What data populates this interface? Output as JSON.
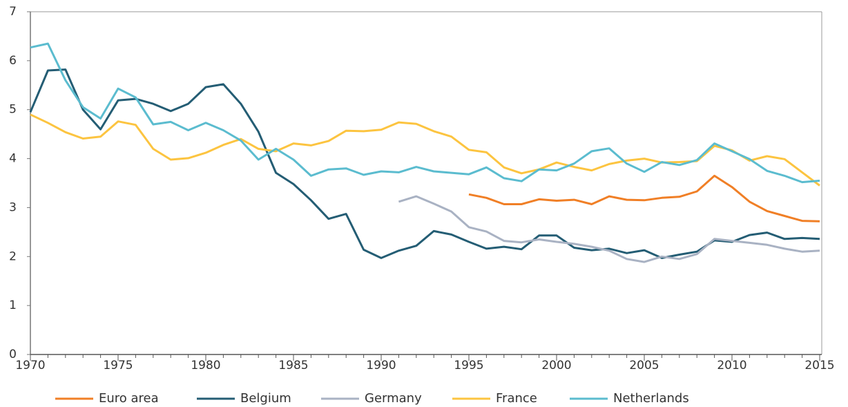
{
  "chart_data": {
    "type": "line",
    "x": [
      1970,
      1971,
      1972,
      1973,
      1974,
      1975,
      1976,
      1977,
      1978,
      1979,
      1980,
      1981,
      1982,
      1983,
      1984,
      1985,
      1986,
      1987,
      1988,
      1989,
      1990,
      1991,
      1992,
      1993,
      1994,
      1995,
      1996,
      1997,
      1998,
      1999,
      2000,
      2001,
      2002,
      2003,
      2004,
      2005,
      2006,
      2007,
      2008,
      2009,
      2010,
      2011,
      2012,
      2013,
      2014,
      2015
    ],
    "xlim": [
      1970,
      2015
    ],
    "xticks": [
      1970,
      1975,
      1980,
      1985,
      1990,
      1995,
      2000,
      2005,
      2010,
      2015
    ],
    "ylim": [
      0,
      7
    ],
    "yticks": [
      0,
      1,
      2,
      3,
      4,
      5,
      6,
      7
    ],
    "series": [
      {
        "name": "Euro area",
        "color": "#f07f26",
        "values": [
          null,
          null,
          null,
          null,
          null,
          null,
          null,
          null,
          null,
          null,
          null,
          null,
          null,
          null,
          null,
          null,
          null,
          null,
          null,
          null,
          null,
          null,
          null,
          null,
          null,
          3.27,
          3.2,
          3.07,
          3.07,
          3.17,
          3.14,
          3.16,
          3.07,
          3.23,
          3.16,
          3.15,
          3.2,
          3.22,
          3.33,
          3.65,
          3.42,
          3.12,
          2.93,
          2.83,
          2.73,
          2.72
        ]
      },
      {
        "name": "Belgium",
        "color": "#245d74",
        "values": [
          4.95,
          5.8,
          5.82,
          5.0,
          4.6,
          5.19,
          5.22,
          5.12,
          4.97,
          5.12,
          5.46,
          5.52,
          5.12,
          4.55,
          3.71,
          3.48,
          3.15,
          2.77,
          2.87,
          2.14,
          1.97,
          2.12,
          2.22,
          2.52,
          2.45,
          2.3,
          2.16,
          2.2,
          2.15,
          2.43,
          2.43,
          2.18,
          2.13,
          2.16,
          2.07,
          2.13,
          1.97,
          2.04,
          2.1,
          2.33,
          2.3,
          2.44,
          2.49,
          2.36,
          2.38,
          2.36
        ]
      },
      {
        "name": "Germany",
        "color": "#a9b2c3",
        "values": [
          null,
          null,
          null,
          null,
          null,
          null,
          null,
          null,
          null,
          null,
          null,
          null,
          null,
          null,
          null,
          null,
          null,
          null,
          null,
          null,
          null,
          3.12,
          3.23,
          3.08,
          2.92,
          2.6,
          2.51,
          2.32,
          2.29,
          2.35,
          2.3,
          2.26,
          2.2,
          2.12,
          1.95,
          1.89,
          2.0,
          1.95,
          2.05,
          2.36,
          2.32,
          2.28,
          2.24,
          2.16,
          2.1,
          2.12
        ]
      },
      {
        "name": "France",
        "color": "#fcc440",
        "values": [
          4.9,
          4.73,
          4.54,
          4.41,
          4.45,
          4.76,
          4.69,
          4.2,
          3.98,
          4.01,
          4.12,
          4.28,
          4.4,
          4.2,
          4.15,
          4.31,
          4.27,
          4.36,
          4.57,
          4.56,
          4.59,
          4.74,
          4.71,
          4.56,
          4.45,
          4.18,
          4.13,
          3.82,
          3.7,
          3.78,
          3.92,
          3.83,
          3.76,
          3.89,
          3.96,
          4.0,
          3.92,
          3.93,
          3.95,
          4.26,
          4.17,
          3.96,
          4.05,
          3.99,
          3.72,
          3.45
        ]
      },
      {
        "name": "Netherlands",
        "color": "#5bbccf",
        "values": [
          6.27,
          6.35,
          5.6,
          5.05,
          4.82,
          5.43,
          5.25,
          4.7,
          4.75,
          4.58,
          4.73,
          4.58,
          4.37,
          3.98,
          4.2,
          3.98,
          3.65,
          3.78,
          3.8,
          3.67,
          3.74,
          3.72,
          3.83,
          3.74,
          3.71,
          3.68,
          3.82,
          3.6,
          3.54,
          3.78,
          3.76,
          3.9,
          4.15,
          4.21,
          3.9,
          3.73,
          3.93,
          3.87,
          3.97,
          4.31,
          4.15,
          3.99,
          3.75,
          3.65,
          3.52,
          3.55
        ]
      }
    ]
  }
}
